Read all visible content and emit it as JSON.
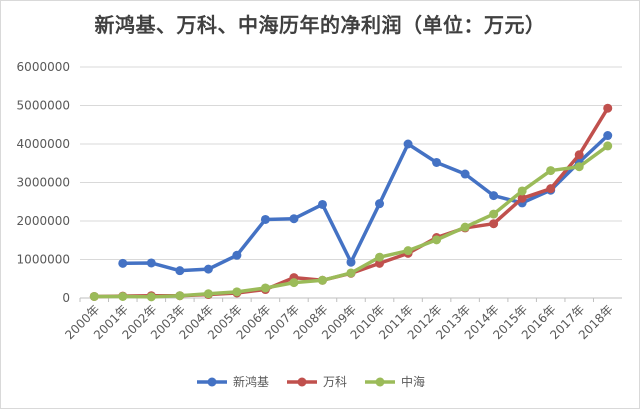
{
  "chart_data": {
    "type": "line",
    "title": "新鸿基、万科、中海历年的净利润（单位：万元）",
    "xlabel": "",
    "ylabel": "",
    "categories": [
      "2000年",
      "2001年",
      "2002年",
      "2003年",
      "2004年",
      "2005年",
      "2006年",
      "2007年",
      "2008年",
      "2009年",
      "2010年",
      "2011年",
      "2012年",
      "2013年",
      "2014年",
      "2015年",
      "2016年",
      "2017年",
      "2018年"
    ],
    "ylim": [
      0,
      6000000
    ],
    "yticks": [
      0,
      1000000,
      2000000,
      3000000,
      4000000,
      5000000,
      6000000
    ],
    "grid": true,
    "legend_position": "bottom",
    "series": [
      {
        "name": "新鸿基",
        "color": "#4472c4",
        "values": [
          null,
          900000,
          910000,
          710000,
          750000,
          1110000,
          2040000,
          2060000,
          2430000,
          930000,
          2450000,
          4000000,
          3520000,
          3220000,
          2660000,
          2470000,
          2800000,
          3530000,
          4220000
        ]
      },
      {
        "name": "万科",
        "color": "#c0504d",
        "values": [
          40000,
          50000,
          60000,
          60000,
          90000,
          130000,
          220000,
          530000,
          460000,
          640000,
          900000,
          1160000,
          1570000,
          1820000,
          1930000,
          2590000,
          2840000,
          3720000,
          4930000
        ]
      },
      {
        "name": "中海",
        "color": "#9bbb59",
        "values": [
          40000,
          40000,
          30000,
          60000,
          110000,
          160000,
          260000,
          400000,
          460000,
          650000,
          1060000,
          1230000,
          1510000,
          1840000,
          2180000,
          2780000,
          3310000,
          3410000,
          3950000
        ]
      }
    ]
  }
}
